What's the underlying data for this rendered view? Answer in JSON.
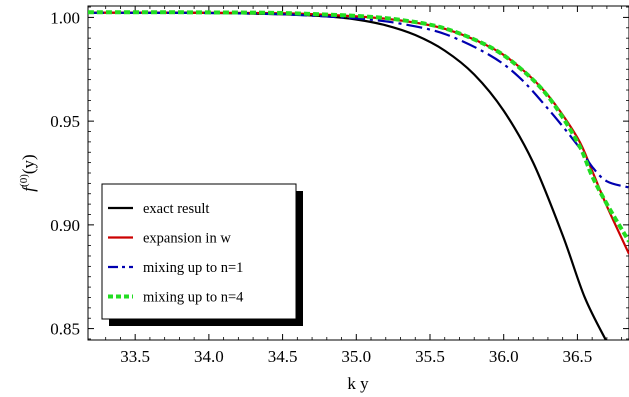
{
  "chart_data": {
    "type": "line",
    "xlabel": "k y",
    "ylabel": "f",
    "ylabel_sup": "(0)",
    "ylabel_tail": "(y)",
    "xlim": [
      33.18,
      36.85
    ],
    "ylim": [
      0.8445,
      1.0055
    ],
    "xticks": [
      33.5,
      34.0,
      34.5,
      35.0,
      35.5,
      36.0,
      36.5
    ],
    "xtick_labels": [
      "33.5",
      "34.0",
      "34.5",
      "35.0",
      "35.5",
      "36.0",
      "36.5"
    ],
    "yticks": [
      0.85,
      0.9,
      0.95,
      1.0
    ],
    "ytick_labels": [
      "0.85",
      "0.90",
      "0.95",
      "1.00"
    ],
    "legend_position": "lower-left",
    "series": [
      {
        "name": "exact result",
        "color": "#000000",
        "dash": "solid",
        "x": [
          33.18,
          33.6,
          34.0,
          34.5,
          34.8,
          35.0,
          35.2,
          35.4,
          35.6,
          35.8,
          36.0,
          36.2,
          36.4,
          36.55,
          36.7
        ],
        "y": [
          1.0023,
          1.0023,
          1.0022,
          1.0015,
          1.0005,
          0.999,
          0.9962,
          0.9915,
          0.984,
          0.9725,
          0.955,
          0.93,
          0.895,
          0.865,
          0.8435
        ]
      },
      {
        "name": "expansion in w",
        "color": "#cc0000",
        "dash": "solid",
        "x": [
          33.18,
          33.6,
          34.0,
          34.5,
          35.0,
          35.3,
          35.6,
          35.9,
          36.1,
          36.3,
          36.5,
          36.6,
          36.7,
          36.85
        ],
        "y": [
          1.0023,
          1.0023,
          1.0022,
          1.002,
          1.0005,
          0.9985,
          0.9945,
          0.986,
          0.9765,
          0.9625,
          0.942,
          0.926,
          0.909,
          0.886
        ]
      },
      {
        "name": "mixing up to n=1",
        "color": "#0000b0",
        "dash": "dashdot",
        "x": [
          33.18,
          33.6,
          34.0,
          34.5,
          35.0,
          35.3,
          35.6,
          35.9,
          36.1,
          36.3,
          36.5,
          36.6,
          36.7,
          36.85
        ],
        "y": [
          1.0022,
          1.0022,
          1.0021,
          1.0015,
          0.9995,
          0.997,
          0.992,
          0.982,
          0.9715,
          0.956,
          0.9385,
          0.928,
          0.921,
          0.918
        ]
      },
      {
        "name": "mixing up to n=4",
        "color": "#22dd22",
        "dash": "dotted",
        "x": [
          33.18,
          33.6,
          34.0,
          34.5,
          35.0,
          35.3,
          35.6,
          35.9,
          36.1,
          36.3,
          36.5,
          36.6,
          36.7,
          36.85
        ],
        "y": [
          1.0025,
          1.0025,
          1.0024,
          1.0021,
          1.0007,
          0.9988,
          0.9947,
          0.986,
          0.9762,
          0.962,
          0.94,
          0.9235,
          0.91,
          0.892
        ]
      }
    ]
  }
}
